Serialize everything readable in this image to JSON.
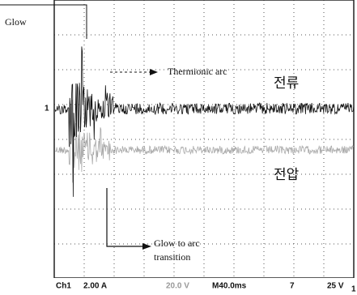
{
  "labels": {
    "glow": "Glow",
    "thermionic_arc": "Thermionic arc",
    "current": "전류",
    "voltage": "전압",
    "transition_line1": "Glow to arc",
    "transition_line2": "transition",
    "ch1_marker": "1"
  },
  "status_bar": {
    "channel": "Ch1",
    "scale": "2.00 A",
    "ch2_scale": "20.0 V",
    "time_base": "M40.0ms",
    "trigger": "7",
    "trigger_level": "25 V",
    "corner": "1"
  }
}
